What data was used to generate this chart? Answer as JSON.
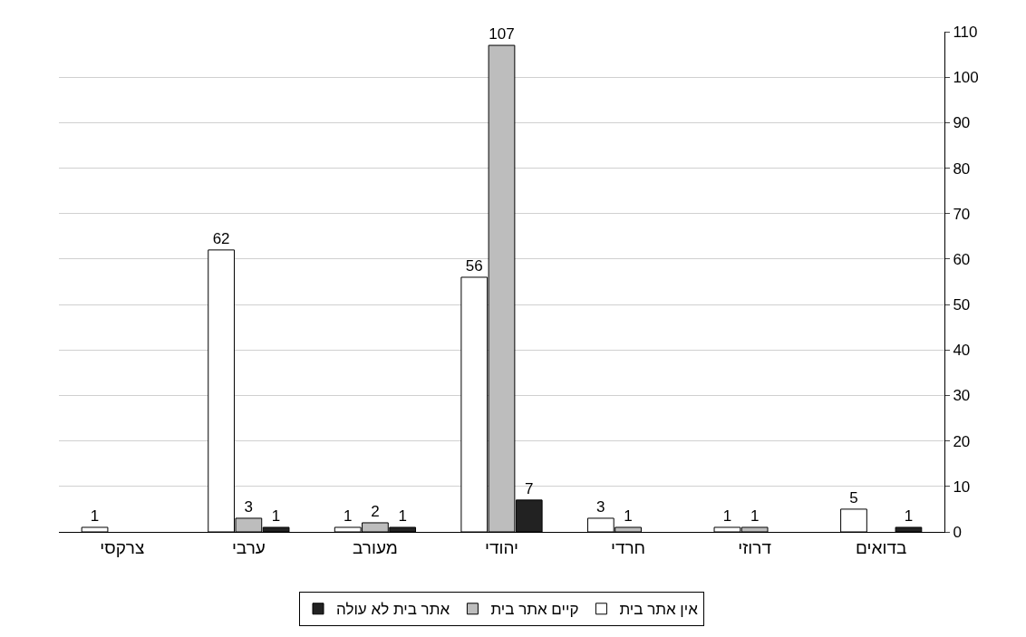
{
  "chart_data": {
    "type": "bar",
    "categories": [
      "צרקסי",
      "ערבי",
      "מעורב",
      "יהודי",
      "חרדי",
      "דרוזי",
      "בדואים"
    ],
    "series": [
      {
        "name": "אין אתר בית",
        "color": "#ffffff",
        "values": [
          1,
          62,
          1,
          56,
          3,
          1,
          5
        ]
      },
      {
        "name": "קיים אתר בית",
        "color": "#bdbdbd",
        "values": [
          null,
          3,
          2,
          107,
          1,
          1,
          null
        ]
      },
      {
        "name": "אתר בית לא עולה",
        "color": "#222222",
        "values": [
          null,
          1,
          1,
          7,
          null,
          null,
          1
        ]
      }
    ],
    "ylim": [
      0,
      110
    ],
    "yticks": [
      0,
      10,
      20,
      30,
      40,
      50,
      60,
      70,
      80,
      90,
      100,
      110
    ],
    "grid": "y",
    "legend": "bottom",
    "data_labels": true
  }
}
